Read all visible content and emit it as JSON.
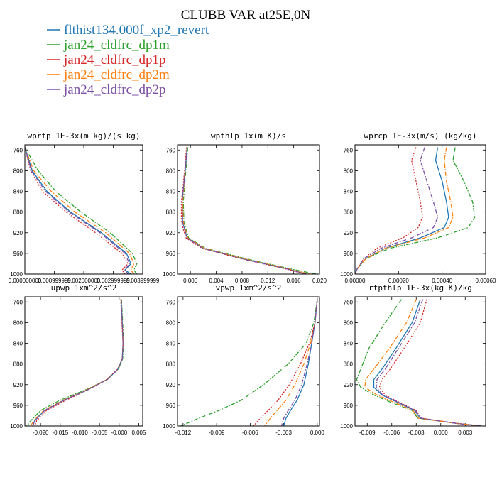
{
  "figure": {
    "title": "CLUBB VAR at25E,0N",
    "legend": [
      {
        "label": "flthist134.000f_xp2_revert",
        "color": "#1f77b4",
        "dash": "solid"
      },
      {
        "label": "jan24_cldfrc_dp1m",
        "color": "#2ca02c",
        "dash": "dashdot"
      },
      {
        "label": "jan24_cldfrc_dp1p",
        "color": "#d62728",
        "dash": "dotted"
      },
      {
        "label": "jan24_cldfrc_dp2m",
        "color": "#ff7f0e",
        "dash": "dashdot"
      },
      {
        "label": "jan24_cldfrc_dp2p",
        "color": "#7b4fa6",
        "dash": "dashdot"
      }
    ]
  },
  "chart_data": [
    {
      "type": "line",
      "title": "wprtp  1E-3x(m kg)/(s kg)",
      "xlim": [
        0,
        0.004
      ],
      "ylim": [
        1000,
        750
      ],
      "xticks": [
        0,
        0.001,
        0.002,
        0.003,
        0.004
      ],
      "xtick_labels": [
        "0.000000000",
        "0.000999999",
        "0.002000000",
        "0.002999999",
        "0.003999999"
      ],
      "yticks": [
        760,
        800,
        840,
        880,
        920,
        960,
        1000
      ],
      "ytick_labels": [
        "760",
        "800",
        "840",
        "880",
        "920",
        "960",
        "1000"
      ],
      "y": [
        755,
        800,
        840,
        880,
        920,
        960,
        980,
        992,
        1000
      ],
      "series": [
        {
          "name": "flthist134.000f_xp2_revert",
          "values": [
            0.0,
            0.00025,
            0.00075,
            0.00155,
            0.0026,
            0.00345,
            0.0036,
            0.0034,
            0.0036
          ]
        },
        {
          "name": "jan24_cldfrc_dp1m",
          "values": [
            0.0,
            0.00045,
            0.00105,
            0.0019,
            0.0029,
            0.00365,
            0.0038,
            0.0037,
            0.0038
          ]
        },
        {
          "name": "jan24_cldfrc_dp1p",
          "values": [
            0.0,
            0.0002,
            0.0006,
            0.0014,
            0.0024,
            0.0033,
            0.0035,
            0.0033,
            0.0034
          ]
        },
        {
          "name": "jan24_cldfrc_dp2m",
          "values": [
            0.0,
            0.0003,
            0.0009,
            0.0017,
            0.00275,
            0.00355,
            0.0037,
            0.0036,
            0.0037
          ]
        },
        {
          "name": "jan24_cldfrc_dp2p",
          "values": [
            0.0,
            0.00022,
            0.0007,
            0.0015,
            0.00255,
            0.0034,
            0.00355,
            0.0034,
            0.0035
          ]
        }
      ]
    },
    {
      "type": "line",
      "title": "wpthlp  1x(m K)/s",
      "xlim": [
        -0.002,
        0.02
      ],
      "ylim": [
        1000,
        750
      ],
      "xticks": [
        0.0,
        0.004,
        0.008,
        0.012,
        0.016,
        0.02
      ],
      "xtick_labels": [
        "0.000",
        "0.004",
        "0.008",
        "0.012",
        "0.016",
        "0.020"
      ],
      "yticks": [
        760,
        800,
        840,
        880,
        920,
        960,
        1000
      ],
      "ytick_labels": [
        "760",
        "800",
        "840",
        "880",
        "920",
        "960",
        "1000"
      ],
      "y": [
        755,
        800,
        860,
        900,
        930,
        950,
        970,
        990,
        1000
      ],
      "series": [
        {
          "name": "flthist134.000f_xp2_revert",
          "values": [
            -0.0005,
            -0.0008,
            -0.0013,
            -0.0012,
            -0.0005,
            0.002,
            0.008,
            0.015,
            0.018
          ]
        },
        {
          "name": "jan24_cldfrc_dp1m",
          "values": [
            -0.0004,
            -0.0007,
            -0.0011,
            -0.001,
            -0.0003,
            0.0023,
            0.0085,
            0.0155,
            0.0195
          ]
        },
        {
          "name": "jan24_cldfrc_dp1p",
          "values": [
            -0.0006,
            -0.0009,
            -0.0014,
            -0.0014,
            -0.0007,
            0.0018,
            0.0078,
            0.0148,
            0.0178
          ]
        },
        {
          "name": "jan24_cldfrc_dp2m",
          "values": [
            -0.0005,
            -0.0008,
            -0.0012,
            -0.0011,
            -0.0004,
            0.0021,
            0.0082,
            0.0152,
            0.0185
          ]
        },
        {
          "name": "jan24_cldfrc_dp2p",
          "values": [
            -0.0005,
            -0.0008,
            -0.0013,
            -0.0012,
            -0.0005,
            0.0019,
            0.0079,
            0.015,
            0.018
          ]
        }
      ]
    },
    {
      "type": "line",
      "title": "wprcp  1E-3x(m/s) (kg/kg)",
      "xlim": [
        0,
        0.0006
      ],
      "ylim": [
        1000,
        750
      ],
      "xticks": [
        0,
        0.0002,
        0.0004,
        0.0006
      ],
      "xtick_labels": [
        "0.00000",
        "0.00020",
        "0.00040",
        "0.00060"
      ],
      "yticks": [
        760,
        800,
        840,
        880,
        920,
        960,
        1000
      ],
      "ytick_labels": [
        "760",
        "800",
        "840",
        "880",
        "920",
        "960",
        "1000"
      ],
      "y": [
        755,
        780,
        820,
        860,
        890,
        910,
        930,
        950,
        970,
        990,
        1000
      ],
      "series": [
        {
          "name": "flthist134.000f_xp2_revert",
          "values": [
            0.00038,
            0.00037,
            0.0004,
            0.00042,
            0.00043,
            0.00041,
            0.0003,
            0.00014,
            5e-05,
            1e-05,
            0.0
          ]
        },
        {
          "name": "jan24_cldfrc_dp1m",
          "values": [
            0.00046,
            0.00045,
            0.0005,
            0.00054,
            0.00055,
            0.00052,
            0.00038,
            0.00016,
            5e-05,
            1e-05,
            0.0
          ]
        },
        {
          "name": "jan24_cldfrc_dp1p",
          "values": [
            0.00028,
            0.00026,
            0.00028,
            0.0003,
            0.00031,
            0.00029,
            0.00022,
            0.0001,
            4e-05,
            1e-05,
            0.0
          ]
        },
        {
          "name": "jan24_cldfrc_dp2m",
          "values": [
            0.00042,
            0.00041,
            0.00042,
            0.00044,
            0.00045,
            0.00043,
            0.00032,
            0.00014,
            5e-05,
            1e-05,
            0.0
          ]
        },
        {
          "name": "jan24_cldfrc_dp2p",
          "values": [
            0.00032,
            0.0003,
            0.00033,
            0.00036,
            0.00038,
            0.00036,
            0.00026,
            0.00012,
            4e-05,
            1e-05,
            0.0
          ]
        }
      ]
    },
    {
      "type": "line",
      "title": "upwp  1xm^2/s^2",
      "xlim": [
        -0.024,
        0.006
      ],
      "ylim": [
        1000,
        750
      ],
      "xticks": [
        -0.02,
        -0.015,
        -0.01,
        -0.005,
        0.0,
        0.005
      ],
      "xtick_labels": [
        "-0.020",
        "-0.015",
        "-0.010",
        "-0.005",
        "-0.000",
        "0.005"
      ],
      "yticks": [
        760,
        800,
        840,
        880,
        920,
        960,
        1000
      ],
      "ytick_labels": [
        "760",
        "800",
        "840",
        "880",
        "920",
        "960",
        "1000"
      ],
      "y": [
        755,
        800,
        840,
        870,
        890,
        910,
        930,
        950,
        970,
        990,
        1000
      ],
      "series": [
        {
          "name": "flthist134.000f_xp2_revert",
          "values": [
            0.0005,
            0.0008,
            0.001,
            0.0008,
            -0.0003,
            -0.003,
            -0.008,
            -0.014,
            -0.019,
            -0.0215,
            -0.022
          ]
        },
        {
          "name": "jan24_cldfrc_dp1m",
          "values": [
            0.0006,
            0.0009,
            0.0011,
            0.0009,
            -0.0002,
            -0.003,
            -0.0085,
            -0.015,
            -0.02,
            -0.0225,
            -0.0235
          ]
        },
        {
          "name": "jan24_cldfrc_dp1p",
          "values": [
            0.0004,
            0.0007,
            0.001,
            0.0008,
            -0.0004,
            -0.0032,
            -0.008,
            -0.0135,
            -0.0185,
            -0.021,
            -0.0215
          ]
        },
        {
          "name": "jan24_cldfrc_dp2m",
          "values": [
            0.0005,
            0.0008,
            0.001,
            0.0008,
            -0.0003,
            -0.0031,
            -0.0082,
            -0.0142,
            -0.0192,
            -0.0218,
            -0.0225
          ]
        },
        {
          "name": "jan24_cldfrc_dp2p",
          "values": [
            0.0005,
            0.0008,
            0.001,
            0.0008,
            -0.0003,
            -0.003,
            -0.008,
            -0.014,
            -0.019,
            -0.0215,
            -0.022
          ]
        }
      ]
    },
    {
      "type": "line",
      "title": "vpwp  1xm^2/s^2",
      "xlim": [
        -0.0125,
        0.0002
      ],
      "ylim": [
        1000,
        750
      ],
      "xticks": [
        -0.012,
        -0.009,
        -0.006,
        -0.003,
        0.0
      ],
      "xtick_labels": [
        "-0.012",
        "-0.009",
        "-0.006",
        "-0.003",
        "0.000"
      ],
      "yticks": [
        760,
        800,
        840,
        880,
        920,
        960,
        1000
      ],
      "ytick_labels": [
        "760",
        "800",
        "840",
        "880",
        "920",
        "960",
        "1000"
      ],
      "y": [
        755,
        800,
        840,
        880,
        920,
        950,
        970,
        985,
        1000
      ],
      "series": [
        {
          "name": "flthist134.000f_xp2_revert",
          "values": [
            0.0,
            -0.0002,
            -0.0005,
            -0.0008,
            -0.0012,
            -0.0018,
            -0.0024,
            -0.0028,
            -0.003
          ]
        },
        {
          "name": "jan24_cldfrc_dp1m",
          "values": [
            0.0,
            -0.0003,
            -0.001,
            -0.0026,
            -0.0048,
            -0.0068,
            -0.0088,
            -0.0106,
            -0.0122
          ]
        },
        {
          "name": "jan24_cldfrc_dp1p",
          "values": [
            0.0,
            -0.0002,
            -0.0007,
            -0.0015,
            -0.0025,
            -0.0035,
            -0.0044,
            -0.0051,
            -0.0057
          ]
        },
        {
          "name": "jan24_cldfrc_dp2m",
          "values": [
            0.0,
            -0.0002,
            -0.0006,
            -0.0012,
            -0.002,
            -0.0028,
            -0.0036,
            -0.0042,
            -0.0047
          ]
        },
        {
          "name": "jan24_cldfrc_dp2p",
          "values": [
            0.0,
            -0.0002,
            -0.0005,
            -0.0009,
            -0.0014,
            -0.002,
            -0.0026,
            -0.003,
            -0.0032
          ]
        }
      ]
    },
    {
      "type": "line",
      "title": "rtpthlp  1E-3x(kg K)/kg",
      "xlim": [
        -0.0105,
        0.0055
      ],
      "ylim": [
        1000,
        750
      ],
      "xticks": [
        -0.009,
        -0.006,
        -0.003,
        0.0,
        0.003
      ],
      "xtick_labels": [
        "-0.009",
        "-0.006",
        "-0.003",
        "0.000",
        "0.003"
      ],
      "yticks": [
        760,
        800,
        840,
        880,
        920,
        960,
        1000
      ],
      "ytick_labels": [
        "760",
        "800",
        "840",
        "880",
        "920",
        "960",
        "1000"
      ],
      "y": [
        755,
        800,
        850,
        890,
        910,
        925,
        940,
        955,
        970,
        985,
        995,
        1000
      ],
      "series": [
        {
          "name": "flthist134.000f_xp2_revert",
          "values": [
            -0.0025,
            -0.0035,
            -0.0055,
            -0.0072,
            -0.0082,
            -0.0082,
            -0.0072,
            -0.0052,
            -0.0032,
            -0.0025,
            0.002,
            0.005
          ]
        },
        {
          "name": "jan24_cldfrc_dp1m",
          "values": [
            -0.0048,
            -0.0068,
            -0.0088,
            -0.0098,
            -0.0103,
            -0.0098,
            -0.0082,
            -0.006,
            -0.0035,
            -0.0028,
            0.002,
            0.005
          ]
        },
        {
          "name": "jan24_cldfrc_dp1p",
          "values": [
            -0.0017,
            -0.0025,
            -0.0045,
            -0.0062,
            -0.0072,
            -0.0075,
            -0.0068,
            -0.005,
            -0.003,
            -0.0023,
            0.002,
            0.005
          ]
        },
        {
          "name": "jan24_cldfrc_dp2m",
          "values": [
            -0.003,
            -0.0042,
            -0.0063,
            -0.0082,
            -0.0092,
            -0.0093,
            -0.0078,
            -0.0056,
            -0.0034,
            -0.0027,
            0.002,
            0.005
          ]
        },
        {
          "name": "jan24_cldfrc_dp2p",
          "values": [
            -0.0022,
            -0.0032,
            -0.0052,
            -0.0068,
            -0.0078,
            -0.0079,
            -0.0071,
            -0.0051,
            -0.0031,
            -0.0024,
            0.002,
            0.005
          ]
        }
      ]
    }
  ]
}
